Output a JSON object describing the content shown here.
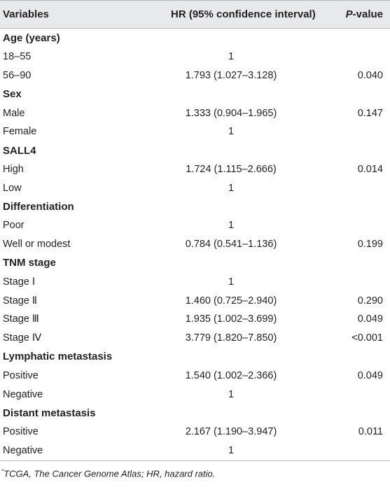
{
  "table": {
    "headers": {
      "variables": "Variables",
      "hr": "HR (95% confidence interval)",
      "pvalue_p": "P",
      "pvalue_rest": "-value"
    },
    "rows": [
      {
        "type": "section",
        "label": "Age (years)",
        "hr": "",
        "p": ""
      },
      {
        "type": "data",
        "label": "18–55",
        "hr": "1",
        "p": ""
      },
      {
        "type": "data",
        "label": "56–90",
        "hr": "1.793 (1.027–3.128)",
        "p": "0.040"
      },
      {
        "type": "section",
        "label": "Sex",
        "hr": "",
        "p": ""
      },
      {
        "type": "data",
        "label": "Male",
        "hr": "1.333 (0.904–1.965)",
        "p": "0.147"
      },
      {
        "type": "data",
        "label": "Female",
        "hr": "1",
        "p": ""
      },
      {
        "type": "section",
        "label": "SALL4",
        "hr": "",
        "p": ""
      },
      {
        "type": "data",
        "label": "High",
        "hr": "1.724 (1.115–2.666)",
        "p": "0.014"
      },
      {
        "type": "data",
        "label": "Low",
        "hr": "1",
        "p": ""
      },
      {
        "type": "section",
        "label": "Differentiation",
        "hr": "",
        "p": ""
      },
      {
        "type": "data",
        "label": "Poor",
        "hr": "1",
        "p": ""
      },
      {
        "type": "data",
        "label": "Well or modest",
        "hr": "0.784 (0.541–1.136)",
        "p": "0.199"
      },
      {
        "type": "section",
        "label": "TNM stage",
        "hr": "",
        "p": ""
      },
      {
        "type": "data",
        "label": "Stage Ⅰ",
        "hr": "1",
        "p": ""
      },
      {
        "type": "data",
        "label": "Stage Ⅱ",
        "hr": "1.460 (0.725–2.940)",
        "p": "0.290"
      },
      {
        "type": "data",
        "label": "Stage Ⅲ",
        "hr": "1.935 (1.002–3.699)",
        "p": "0.049"
      },
      {
        "type": "data",
        "label": "Stage Ⅳ",
        "hr": "3.779 (1.820–7.850)",
        "p": "<0.001"
      },
      {
        "type": "section",
        "label": "Lymphatic metastasis",
        "hr": "",
        "p": ""
      },
      {
        "type": "data",
        "label": "Positive",
        "hr": "1.540 (1.002–2.366)",
        "p": "0.049"
      },
      {
        "type": "data",
        "label": "Negative",
        "hr": "1",
        "p": ""
      },
      {
        "type": "section",
        "label": "Distant metastasis",
        "hr": "",
        "p": ""
      },
      {
        "type": "data",
        "label": "Positive",
        "hr": "2.167 (1.190–3.947)",
        "p": "0.011"
      },
      {
        "type": "data",
        "label": "Negative",
        "hr": "1",
        "p": ""
      }
    ]
  },
  "footnote": {
    "mark": "*",
    "text": "TCGA, The Cancer Genome Atlas; HR, hazard ratio."
  }
}
